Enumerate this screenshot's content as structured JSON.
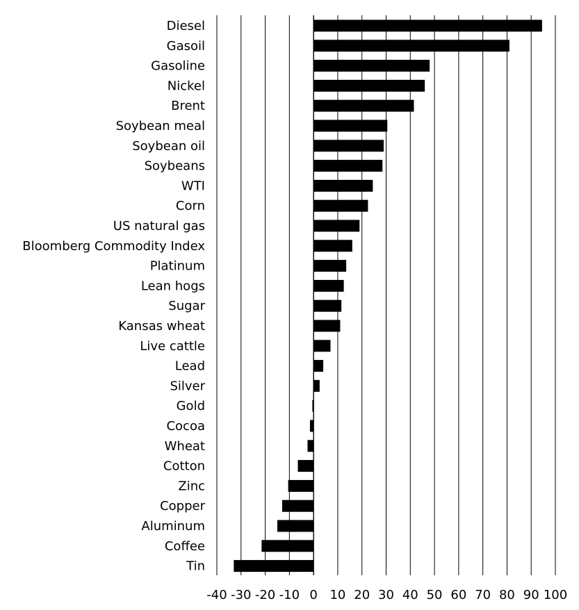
{
  "chart_data": {
    "type": "bar",
    "orientation": "horizontal",
    "title": "",
    "xlabel": "",
    "ylabel": "",
    "categories": [
      "Diesel",
      "Gasoil",
      "Gasoline",
      "Nickel",
      "Brent",
      "Soybean meal",
      "Soybean oil",
      "Soybeans",
      "WTI",
      "Corn",
      "US natural gas",
      "Bloomberg Commodity Index",
      "Platinum",
      "Lean hogs",
      "Sugar",
      "Kansas wheat",
      "Live cattle",
      "Lead",
      "Silver",
      "Gold",
      "Cocoa",
      "Wheat",
      "Cotton",
      "Zinc",
      "Copper",
      "Aluminum",
      "Coffee",
      "Tin"
    ],
    "values": [
      94.5,
      81,
      48,
      46,
      41.5,
      30.5,
      29,
      28.5,
      24.5,
      22.5,
      19,
      16,
      13.5,
      12.5,
      11.5,
      11,
      7,
      4,
      2.5,
      -0.5,
      -1.5,
      -2.5,
      -6.5,
      -10.5,
      -13,
      -15,
      -21.5,
      -33
    ],
    "xlim": [
      -40,
      100
    ],
    "xticks": [
      -40,
      -30,
      -20,
      -10,
      0,
      10,
      20,
      30,
      40,
      50,
      60,
      70,
      80,
      90,
      100
    ],
    "xtick_labels": [
      "-40",
      "-30",
      "-20",
      "-10",
      "0",
      "10",
      "20",
      "30",
      "40",
      "50",
      "60",
      "70",
      "80",
      "90",
      "100"
    ],
    "grid": "vertical",
    "legend": "none",
    "colors": {
      "bar": "#000000",
      "grid": "#000000",
      "text": "#000000",
      "background": "#ffffff"
    }
  }
}
